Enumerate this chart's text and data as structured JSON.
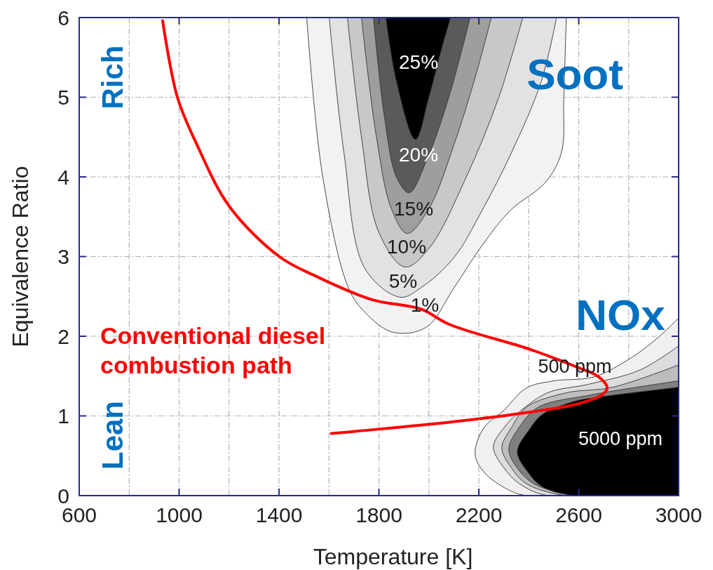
{
  "chart_data": {
    "type": "area",
    "xlabel": "Temperature [K]",
    "ylabel": "Equivalence Ratio",
    "xlim": [
      600,
      3000
    ],
    "ylim": [
      0,
      6
    ],
    "xticks": [
      600,
      {
        "value": 800,
        "label": null
      },
      1000,
      {
        "value": 1200,
        "label": null
      },
      1400,
      {
        "value": 1600,
        "label": null
      },
      1800,
      {
        "value": 2000,
        "label": null
      },
      2200,
      {
        "value": 2400,
        "label": null
      },
      2600,
      {
        "value": 2800,
        "label": null
      },
      3000
    ],
    "yticks": [
      0,
      1,
      2,
      3,
      4,
      5,
      6
    ],
    "grid": true,
    "series": [
      {
        "color": "#f2f2f2",
        "x": [
          1511,
          1575,
          1679,
          1744,
          1856,
          1988,
          2101,
          2213,
          2326,
          2466,
          2531,
          2540,
          2550
        ],
        "values": [
          6,
          4,
          2.6,
          2.3,
          2.05,
          2.11,
          2.61,
          3.14,
          3.58,
          3.93,
          4.31,
          4.99,
          6
        ]
      },
      {
        "color": "#e2e2e2",
        "x": [
          1601,
          1660,
          1744,
          1885,
          1969,
          2101,
          2213,
          2330,
          2450,
          2511
        ],
        "values": [
          6,
          4.3,
          2.85,
          2.49,
          2.61,
          2.99,
          3.58,
          4.3,
          5.2,
          6
        ]
      },
      {
        "color": "#c8c8c8",
        "x": [
          1674,
          1730,
          1800,
          1904,
          2000,
          2150,
          2280,
          2376
        ],
        "values": [
          6,
          4.5,
          3.3,
          2.87,
          3.1,
          4,
          5,
          6
        ]
      },
      {
        "color": "#9e9e9e",
        "x": [
          1730,
          1790,
          1850,
          1913,
          2000,
          2100,
          2190,
          2250
        ],
        "values": [
          6,
          4.5,
          3.6,
          3.29,
          3.6,
          4.4,
          5.3,
          6
        ]
      },
      {
        "color": "#5a5a5a",
        "x": [
          1778,
          1820,
          1870,
          1921,
          1990,
          2080,
          2165
        ],
        "values": [
          6,
          4.8,
          4,
          3.8,
          4.2,
          5,
          6
        ]
      },
      {
        "color": "#000000",
        "x": [
          1828,
          1870,
          1946,
          2000,
          2050,
          2087
        ],
        "values": [
          6,
          5.2,
          4.47,
          5,
          5.6,
          6
        ]
      },
      {
        "color": "#f0f0f0",
        "x": [
          3000,
          2920,
          2810,
          2660,
          2500,
          2390,
          2300,
          2220,
          2185,
          2222,
          2314,
          2390,
          3000
        ],
        "values": [
          2.23,
          1.99,
          1.73,
          1.49,
          1.44,
          1.35,
          1.07,
          0.85,
          0.52,
          0.29,
          0.08,
          0,
          0
        ]
      },
      {
        "color": "#dcdcdc",
        "x": [
          3000,
          2848,
          2643,
          2475,
          2362,
          2300,
          2258,
          2300,
          2362,
          2475,
          3000
        ],
        "values": [
          1.88,
          1.58,
          1.4,
          1.29,
          1.05,
          0.85,
          0.61,
          0.35,
          0.15,
          0,
          0
        ]
      },
      {
        "color": "#bdbdbd",
        "x": [
          3000,
          2736,
          2550,
          2390,
          2330,
          2292,
          2330,
          2390,
          2550,
          3000
        ],
        "values": [
          1.64,
          1.36,
          1.29,
          1.11,
          0.85,
          0.6,
          0.35,
          0.15,
          0,
          0
        ]
      },
      {
        "color": "#808080",
        "x": [
          3000,
          2643,
          2438,
          2360,
          2320,
          2360,
          2438,
          2643,
          3000
        ],
        "values": [
          1.44,
          1.26,
          1.11,
          0.85,
          0.58,
          0.32,
          0.12,
          0,
          0
        ]
      },
      {
        "color": "#000000",
        "x": [
          3000,
          2643,
          2580,
          2455,
          2400,
          2354,
          2400,
          2455,
          2580,
          3000
        ],
        "values": [
          1.36,
          1.22,
          1.18,
          1.02,
          0.82,
          0.55,
          0.28,
          0.11,
          0,
          0
        ]
      },
      {
        "type": "line",
        "name": "Conventional diesel combustion path",
        "color": "#ff0000",
        "x": [
          934,
          993,
          1072,
          1201,
          1401,
          1550,
          1772,
          1969,
          2081,
          2410,
          2595,
          2680,
          2714,
          2691,
          2595,
          2410,
          2081,
          1609
        ],
        "values": [
          5.96,
          5,
          4.4,
          3.63,
          3,
          2.75,
          2.46,
          2.34,
          2.15,
          1.83,
          1.61,
          1.49,
          1.35,
          1.26,
          1.15,
          1.05,
          0.92,
          0.78
        ]
      }
    ],
    "annotations": [
      "25%",
      "20%",
      "15%",
      "10%",
      "5%",
      "1%",
      "500 ppm",
      "5000 ppm",
      "Soot",
      "NOx",
      "Rich",
      "Lean"
    ]
  }
}
